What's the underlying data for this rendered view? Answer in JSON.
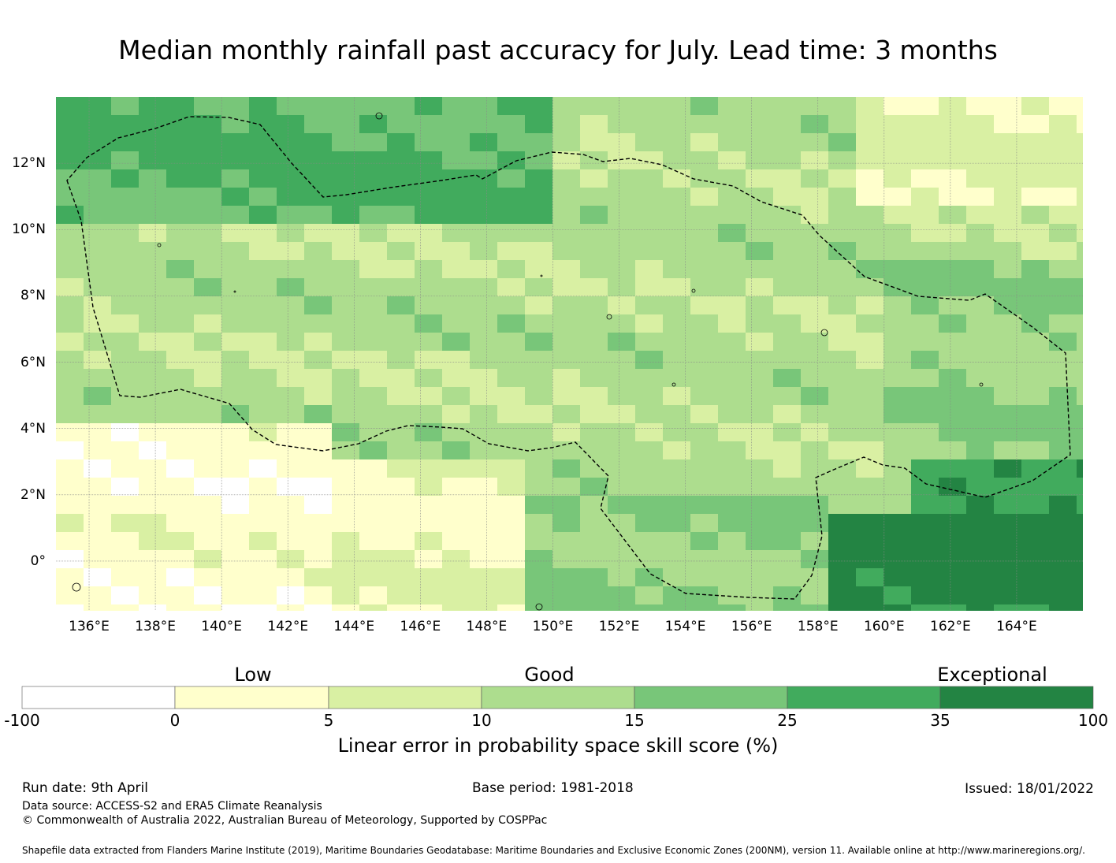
{
  "title": "Median monthly rainfall past accuracy for July. Lead time: 3 months",
  "map": {
    "lon_range": [
      135,
      166
    ],
    "lat_range": [
      -1.5,
      14
    ],
    "lon_ticks": [
      "136°E",
      "138°E",
      "140°E",
      "142°E",
      "144°E",
      "146°E",
      "148°E",
      "150°E",
      "152°E",
      "154°E",
      "156°E",
      "158°E",
      "160°E",
      "162°E",
      "164°E"
    ],
    "lat_ticks": [
      "12°N",
      "10°N",
      "8°N",
      "6°N",
      "4°N",
      "2°N",
      "0°"
    ],
    "grid": true,
    "boundary": "EEZ dashed outline"
  },
  "colorbar": {
    "categories": [
      "Low",
      "Good",
      "Exceptional"
    ],
    "ticks": [
      "-100",
      "0",
      "5",
      "10",
      "15",
      "25",
      "35",
      "100"
    ],
    "colors": [
      "#ffffff",
      "#ffffcc",
      "#d9f0a3",
      "#addd8e",
      "#78c679",
      "#41ab5d",
      "#238443"
    ],
    "label": "Linear error in probability space skill score (%)"
  },
  "footer": {
    "run_date": "Run date: 9th April",
    "base_period": "Base period: 1981-2018",
    "issued": "Issued: 18/01/2022",
    "data_source": "Data source: ACCESS-S2 and ERA5 Climate Reanalysis",
    "copyright": "© Commonwealth of Australia 2022, Australian Bureau of Meteorology, Supported by COSPPac",
    "shapefile": "Shapefile data extracted from Flanders Marine Institute (2019), Maritime Boundaries Geodatabase: Maritime Boundaries and Exclusive Economic Zones (200NM), version 11. Available online at http://www.marineregions.org/."
  }
}
